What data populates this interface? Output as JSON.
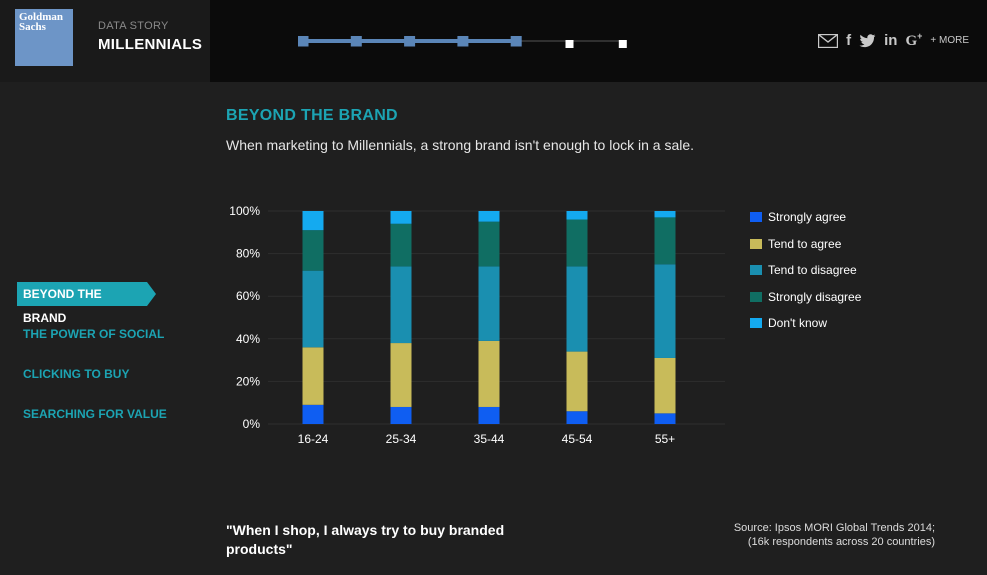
{
  "header": {
    "logo_text": "Goldman Sachs",
    "kicker": "DATA STORY",
    "story_title": "MILLENNIALS",
    "progress": {
      "total_steps": 7,
      "current_step": 5
    },
    "social": {
      "mail_icon": "mail-icon",
      "facebook": "f",
      "twitter_icon": "twitter-icon",
      "linkedin": "in",
      "google": "G",
      "google_plus": "+",
      "more": "+ MORE"
    }
  },
  "nav": {
    "items": [
      {
        "label": "BEYOND THE BRAND",
        "active": true
      },
      {
        "label": "THE POWER OF SOCIAL",
        "active": false
      },
      {
        "label": "CLICKING TO BUY",
        "active": false
      },
      {
        "label": "SEARCHING FOR VALUE",
        "active": false
      }
    ]
  },
  "section": {
    "title": "BEYOND THE BRAND",
    "subtitle": "When marketing to Millennials, a strong brand isn't enough to lock in a sale."
  },
  "chart_data": {
    "type": "bar",
    "stacked": true,
    "categories": [
      "16-24",
      "25-34",
      "35-44",
      "45-54",
      "55+"
    ],
    "series": [
      {
        "name": "Strongly agree",
        "color": "#0f5ef2",
        "values": [
          9,
          8,
          8,
          6,
          5
        ]
      },
      {
        "name": "Tend to agree",
        "color": "#c8bb5a",
        "values": [
          27,
          30,
          31,
          28,
          26
        ]
      },
      {
        "name": "Tend to disagree",
        "color": "#1a8fb0",
        "values": [
          36,
          36,
          35,
          40,
          44
        ]
      },
      {
        "name": "Strongly disagree",
        "color": "#106e63",
        "values": [
          19,
          20,
          21,
          22,
          22
        ]
      },
      {
        "name": "Don't know",
        "color": "#14aaf0",
        "values": [
          9,
          6,
          5,
          4,
          3
        ]
      }
    ],
    "yticks": [
      "0%",
      "20%",
      "40%",
      "60%",
      "80%",
      "100%"
    ],
    "ylim": [
      0,
      100
    ],
    "grid": true,
    "legend_position": "right"
  },
  "quote": "\"When I shop, I always try to buy branded products\"",
  "source": {
    "line1": "Source: Ipsos MORI Global Trends 2014;",
    "line2": "(16k respondents across 20 countries)"
  }
}
